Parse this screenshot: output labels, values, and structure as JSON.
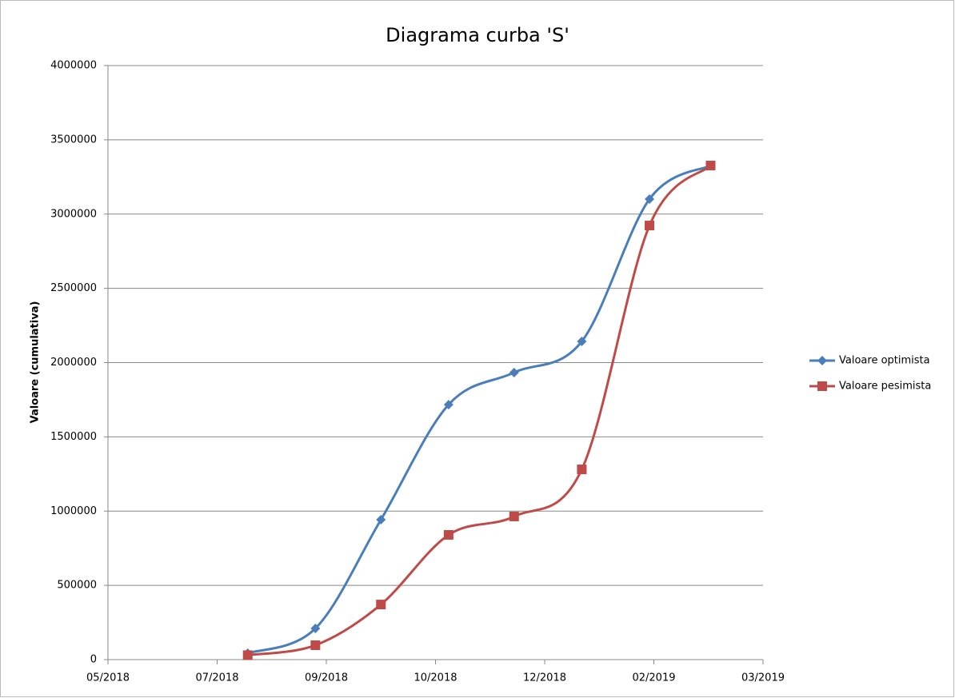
{
  "chart_data": {
    "type": "line",
    "title": "Diagrama curba 'S'",
    "y_label": "Valoare (cumulativa)",
    "xlim": [
      43248,
      43548
    ],
    "xticks": [
      {
        "value": 43248,
        "label": "05/2018"
      },
      {
        "value": 43298,
        "label": "07/2018"
      },
      {
        "value": 43348,
        "label": "09/2018"
      },
      {
        "value": 43398,
        "label": "10/2018"
      },
      {
        "value": 43448,
        "label": "12/2018"
      },
      {
        "value": 43498,
        "label": "02/2019"
      },
      {
        "value": 43548,
        "label": "03/2019"
      }
    ],
    "ylim": [
      0,
      4000000
    ],
    "yticks": [
      0,
      500000,
      1000000,
      1500000,
      2000000,
      2500000,
      3000000,
      3500000,
      4000000
    ],
    "grid": true,
    "legend": "right",
    "smooth": true,
    "x": [
      43312,
      43343,
      43373,
      43404,
      43434,
      43465,
      43496,
      43524
    ],
    "series": [
      {
        "name": "Valoare optimista",
        "color": "#4a7ebb",
        "marker": "diamond",
        "values": [
          43000,
          210000,
          942000,
          1717000,
          1933000,
          2143000,
          3101000,
          3327000
        ]
      },
      {
        "name": "Valoare pesimista",
        "color": "#be4b48",
        "marker": "square",
        "values": [
          30000,
          97000,
          371000,
          840000,
          964000,
          1281000,
          2923000,
          3327000
        ]
      }
    ]
  }
}
